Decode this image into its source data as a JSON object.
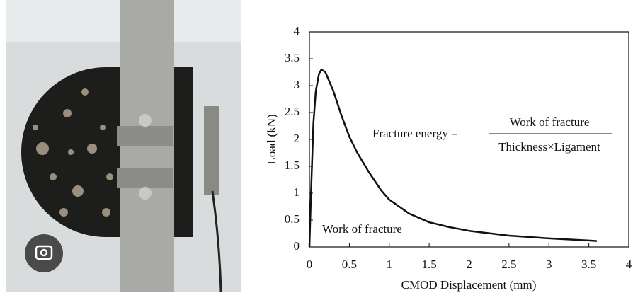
{
  "chart_data": {
    "type": "line",
    "x_label": "CMOD Displacement (mm)",
    "y_label": "Load (kN)",
    "annotations": {
      "equation_lhs": "Fracture energy =",
      "numerator": "Work of fracture",
      "denominator": "Thickness×Ligament",
      "area_label": "Work of fracture"
    },
    "x": [
      0,
      0.02,
      0.05,
      0.08,
      0.12,
      0.15,
      0.2,
      0.3,
      0.4,
      0.5,
      0.6,
      0.75,
      0.9,
      1.0,
      1.25,
      1.5,
      1.75,
      2.0,
      2.5,
      3.0,
      3.5,
      3.6
    ],
    "series": [
      {
        "color": "#111111",
        "values": [
          0,
          1.0,
          2.3,
          2.9,
          3.22,
          3.3,
          3.25,
          2.9,
          2.45,
          2.05,
          1.75,
          1.38,
          1.05,
          0.88,
          0.62,
          0.46,
          0.37,
          0.3,
          0.21,
          0.16,
          0.12,
          0.11
        ]
      }
    ],
    "xlim": [
      0,
      4
    ],
    "ylim": [
      0,
      4
    ],
    "xticks": [
      0,
      0.5,
      1,
      1.5,
      2,
      2.5,
      3,
      3.5,
      4
    ],
    "yticks": [
      0,
      0.5,
      1,
      1.5,
      2,
      2.5,
      3,
      3.5,
      4
    ]
  }
}
